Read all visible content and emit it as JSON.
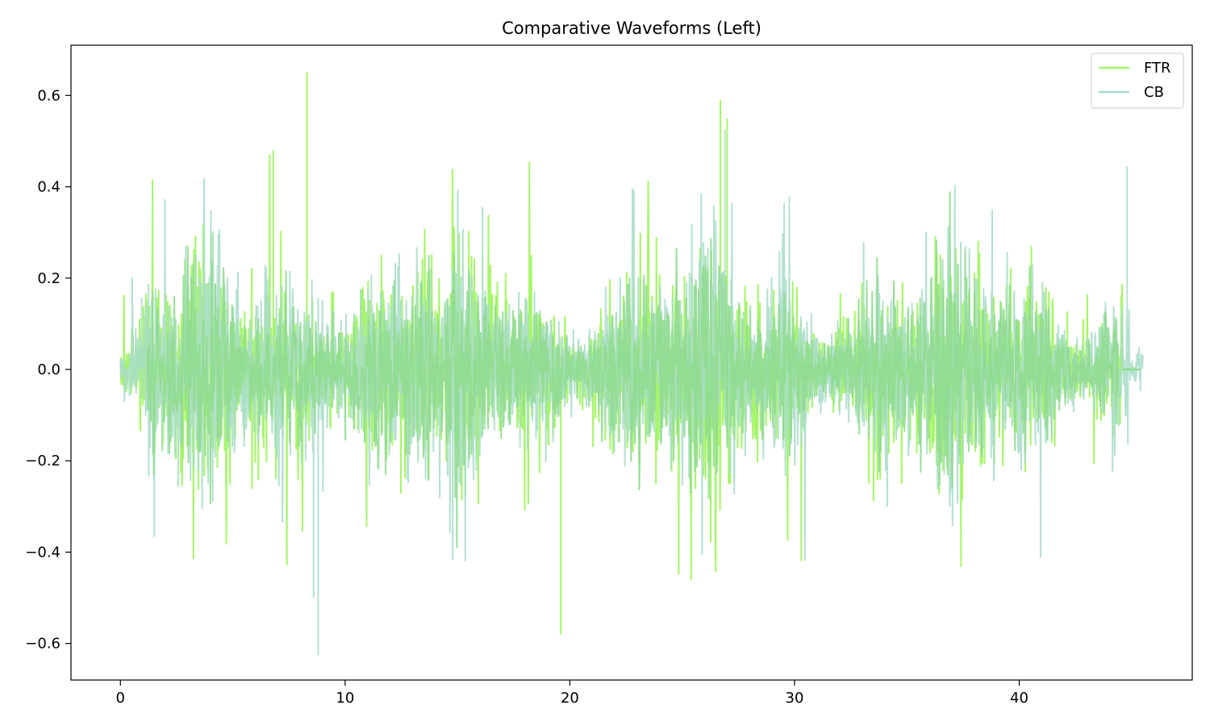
{
  "chart_data": {
    "type": "line",
    "title": "Comparative Waveforms (Left)",
    "xlabel": "",
    "ylabel": "",
    "xlim": [
      -2.2,
      47.7
    ],
    "ylim": [
      -0.68,
      0.71
    ],
    "x_ticks": [
      0,
      10,
      20,
      30,
      40
    ],
    "y_ticks": [
      -0.6,
      -0.4,
      -0.2,
      0.0,
      0.2,
      0.4,
      0.6
    ],
    "x_tick_labels": [
      "0",
      "10",
      "20",
      "30",
      "40"
    ],
    "y_tick_labels": [
      "−0.6",
      "−0.4",
      "−0.2",
      "0.0",
      "0.2",
      "0.4",
      "0.6"
    ],
    "grid": false,
    "legend_position": "top-right",
    "series": [
      {
        "name": "FTR",
        "color": "#a6f56a",
        "x_range": [
          0,
          45.2
        ],
        "peak_positive": 0.65,
        "peak_negative": -0.585,
        "peak_times": [
          8.3,
          6.8,
          26.7,
          19.6,
          27.0
        ],
        "peak_values": [
          0.65,
          0.48,
          0.59,
          -0.58,
          0.55
        ]
      },
      {
        "name": "CB",
        "color": "#a8dcc8",
        "x_range": [
          0,
          45.5
        ],
        "peak_positive": 0.525,
        "peak_negative": -0.625,
        "peak_times": [
          8.8,
          26.9,
          8.6,
          44.8
        ],
        "peak_values": [
          -0.625,
          0.525,
          -0.5,
          0.445
        ]
      }
    ],
    "overlap_color": "#90dc90"
  }
}
